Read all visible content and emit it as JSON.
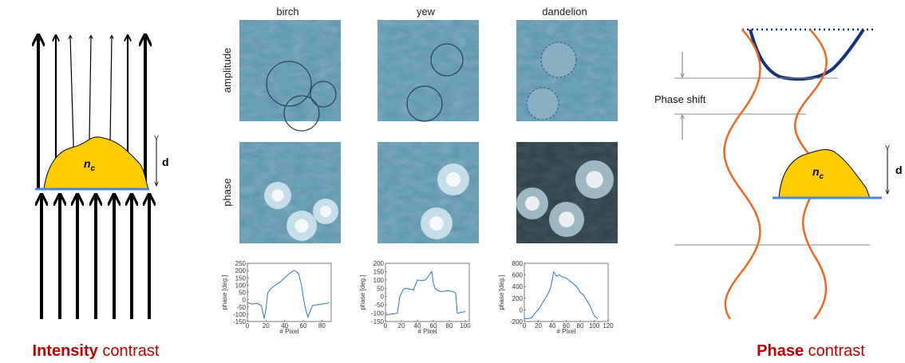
{
  "left": {
    "title_bold": "Intensity",
    "title_rest": "contrast",
    "index_symbol": "n",
    "index_subscript": "c",
    "thickness": "d"
  },
  "columns": [
    "birch",
    "yew",
    "dandelion"
  ],
  "rows": [
    "amplitude",
    "phase"
  ],
  "plots": [
    {
      "type": "line",
      "xlabel": "# Pixel",
      "ylabel": "phase [deg.]",
      "xlim": [
        0,
        90
      ],
      "ylim": [
        -150,
        250
      ],
      "xticks": [
        0,
        20,
        40,
        60,
        80
      ],
      "yticks": [
        -150,
        -100,
        -50,
        0,
        50,
        100,
        150,
        200,
        250
      ],
      "color": "#2a7ab8",
      "x": [
        0,
        5,
        10,
        15,
        18,
        20,
        22,
        26,
        30,
        35,
        40,
        45,
        50,
        53,
        55,
        58,
        60,
        62,
        65,
        68,
        70,
        75,
        80,
        85,
        88
      ],
      "values": [
        -20,
        -30,
        -25,
        -40,
        -130,
        -60,
        50,
        80,
        100,
        120,
        150,
        180,
        200,
        190,
        180,
        100,
        20,
        -50,
        -120,
        -70,
        -40,
        -35,
        -30,
        -25,
        -20
      ]
    },
    {
      "type": "line",
      "xlabel": "# Pixel",
      "ylabel": "phase [deg.]",
      "xlim": [
        0,
        105
      ],
      "ylim": [
        -150,
        200
      ],
      "xticks": [
        0,
        20,
        40,
        60,
        80,
        100
      ],
      "yticks": [
        -150,
        -100,
        -50,
        0,
        50,
        100,
        150,
        200
      ],
      "color": "#2a7ab8",
      "x": [
        0,
        8,
        15,
        18,
        22,
        25,
        30,
        35,
        40,
        45,
        50,
        55,
        58,
        60,
        62,
        66,
        70,
        78,
        85,
        88,
        90,
        95,
        100
      ],
      "values": [
        -110,
        -105,
        -100,
        0,
        40,
        50,
        45,
        40,
        100,
        95,
        100,
        130,
        150,
        80,
        50,
        35,
        30,
        35,
        30,
        20,
        -100,
        -95,
        -90
      ]
    },
    {
      "type": "line",
      "xlabel": "# Pixel",
      "ylabel": "phase [deg.]",
      "xlim": [
        0,
        120
      ],
      "ylim": [
        -200,
        800
      ],
      "xticks": [
        0,
        20,
        40,
        60,
        80,
        100,
        120
      ],
      "yticks": [
        -200,
        0,
        200,
        400,
        600,
        800
      ],
      "color": "#2a7ab8",
      "x": [
        0,
        5,
        10,
        15,
        20,
        25,
        30,
        35,
        38,
        42,
        46,
        50,
        55,
        60,
        65,
        70,
        75,
        80,
        85,
        90,
        95,
        100,
        105
      ],
      "values": [
        -150,
        -150,
        -140,
        -60,
        0,
        100,
        200,
        300,
        400,
        650,
        580,
        600,
        560,
        550,
        500,
        450,
        400,
        300,
        250,
        150,
        50,
        -100,
        -150
      ]
    }
  ],
  "right": {
    "annotation": "Phase shift",
    "title_bold": "Phase",
    "title_rest": "contrast",
    "index_symbol": "n",
    "index_subscript": "c",
    "thickness": "d"
  }
}
